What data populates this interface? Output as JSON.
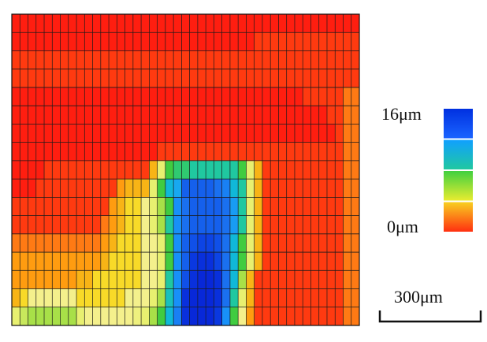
{
  "chart_data": {
    "type": "heatmap",
    "title": "",
    "xlabel": "",
    "ylabel": "",
    "colorbar": {
      "max_label": "16μm",
      "min_label": "0μm",
      "range": [
        0,
        16
      ],
      "unit": "μm",
      "bands": [
        {
          "from": 12,
          "to": 16,
          "colors": [
            "#0030e0",
            "#1a64ff"
          ]
        },
        {
          "from": 8,
          "to": 12,
          "colors": [
            "#10a0ff",
            "#20c8a0"
          ]
        },
        {
          "from": 4,
          "to": 8,
          "colors": [
            "#40d040",
            "#e8ec30"
          ]
        },
        {
          "from": 0,
          "to": 4,
          "colors": [
            "#f8d020",
            "#ff3010"
          ]
        }
      ]
    },
    "scale_bar": {
      "label": "300μm"
    },
    "grid": true,
    "rows": 17,
    "cols": 43,
    "height_map": [
      [
        0.0,
        0.0,
        0.0,
        0.0,
        0.0,
        0.0,
        0.0,
        0.0,
        0.0,
        0.0,
        0.0,
        0.0,
        0.0,
        0.0,
        0.0,
        0.0,
        0.0,
        0.0,
        0.0,
        0.0,
        0.0,
        0.0,
        0.0,
        0.0,
        0.0,
        0.0,
        0.0,
        0.0,
        0.0,
        0.0,
        0.0,
        0.0,
        0.0,
        0.0,
        0.0,
        0.0,
        0.0,
        0.0,
        0.0,
        0.0,
        0.0,
        0.0,
        0.0
      ],
      [
        0.0,
        0.0,
        0.0,
        0.0,
        0.0,
        0.0,
        0.0,
        0.0,
        0.0,
        0.0,
        0.0,
        0.0,
        0.0,
        0.0,
        0.0,
        0.0,
        0.0,
        0.0,
        0.0,
        0.0,
        0.0,
        0.0,
        0.0,
        0.0,
        0.0,
        0.0,
        0.0,
        0.0,
        0.0,
        0.0,
        1.0,
        1.0,
        1.0,
        1.0,
        1.0,
        1.0,
        1.0,
        1.0,
        1.0,
        1.0,
        1.0,
        1.0,
        1.0
      ],
      [
        1.0,
        1.0,
        1.0,
        1.0,
        1.0,
        1.0,
        1.0,
        1.0,
        1.0,
        1.0,
        1.0,
        1.0,
        1.0,
        1.0,
        1.0,
        1.0,
        1.0,
        1.0,
        1.0,
        1.0,
        1.0,
        1.0,
        1.0,
        1.0,
        1.0,
        1.0,
        1.0,
        1.0,
        1.0,
        1.0,
        1.0,
        1.0,
        1.0,
        1.0,
        1.0,
        1.0,
        1.0,
        1.0,
        1.0,
        1.0,
        1.0,
        1.0,
        1.0
      ],
      [
        1.0,
        1.0,
        1.0,
        1.0,
        1.0,
        1.0,
        1.0,
        1.0,
        1.0,
        1.0,
        1.0,
        1.0,
        1.0,
        1.0,
        1.0,
        1.0,
        1.0,
        1.0,
        1.0,
        1.0,
        1.0,
        1.0,
        1.0,
        1.0,
        1.0,
        1.0,
        1.0,
        1.0,
        1.0,
        1.0,
        1.0,
        1.0,
        1.0,
        1.0,
        1.0,
        1.0,
        1.0,
        1.0,
        1.0,
        1.0,
        1.0,
        1.0,
        1.0
      ],
      [
        0.0,
        0.0,
        0.0,
        0.0,
        0.0,
        0.0,
        0.0,
        0.0,
        0.0,
        0.0,
        0.0,
        0.0,
        0.0,
        0.0,
        0.0,
        0.0,
        0.0,
        0.0,
        0.0,
        0.0,
        0.0,
        0.0,
        0.0,
        0.0,
        0.0,
        0.0,
        0.0,
        0.0,
        0.0,
        0.0,
        0.0,
        0.0,
        0.0,
        0.0,
        0.0,
        0.0,
        1.0,
        1.0,
        1.0,
        1.0,
        1.0,
        1.5,
        1.5
      ],
      [
        0.0,
        0.0,
        0.0,
        0.0,
        0.0,
        0.0,
        0.0,
        0.0,
        0.0,
        0.0,
        0.0,
        0.0,
        0.0,
        0.0,
        0.0,
        0.0,
        0.0,
        0.0,
        0.0,
        0.0,
        0.0,
        0.0,
        0.0,
        0.0,
        0.0,
        0.0,
        0.0,
        0.0,
        0.0,
        0.0,
        0.0,
        0.0,
        0.0,
        0.0,
        0.0,
        0.0,
        0.0,
        0.0,
        0.0,
        1.0,
        1.0,
        1.5,
        1.5
      ],
      [
        0.0,
        0.0,
        0.0,
        0.0,
        0.0,
        0.0,
        0.0,
        0.0,
        0.0,
        0.0,
        0.0,
        0.0,
        0.0,
        0.0,
        0.0,
        0.0,
        0.0,
        0.0,
        0.0,
        0.0,
        0.0,
        0.0,
        0.0,
        0.0,
        0.0,
        0.0,
        0.0,
        0.0,
        0.0,
        0.0,
        0.0,
        0.0,
        0.0,
        0.0,
        0.0,
        0.0,
        0.0,
        0.0,
        0.0,
        0.0,
        1.0,
        1.5,
        1.5
      ],
      [
        0.0,
        0.0,
        0.0,
        0.0,
        0.0,
        0.0,
        0.0,
        0.0,
        0.0,
        0.0,
        0.0,
        0.0,
        0.0,
        0.0,
        0.0,
        0.0,
        0.0,
        0.0,
        1.0,
        1.0,
        1.0,
        1.0,
        1.0,
        1.0,
        1.0,
        1.0,
        1.0,
        1.0,
        1.0,
        1.0,
        1.0,
        1.0,
        1.0,
        1.0,
        1.0,
        1.0,
        1.0,
        1.0,
        1.0,
        1.0,
        1.0,
        1.5,
        1.5
      ],
      [
        0.0,
        0.0,
        0.0,
        0.0,
        1.0,
        1.0,
        1.0,
        1.0,
        1.0,
        1.0,
        1.0,
        1.0,
        1.0,
        1.0,
        1.0,
        1.0,
        1.0,
        3.0,
        5.0,
        7.0,
        7.5,
        7.5,
        8.0,
        8.0,
        8.0,
        8.0,
        8.0,
        8.0,
        7.0,
        5.0,
        3.0,
        1.0,
        1.0,
        1.0,
        1.0,
        1.0,
        1.0,
        1.0,
        1.0,
        1.0,
        1.0,
        1.5,
        1.5
      ],
      [
        0.0,
        0.0,
        0.0,
        1.0,
        1.0,
        1.0,
        1.0,
        1.0,
        1.0,
        1.0,
        1.0,
        1.0,
        1.0,
        2.0,
        3.0,
        3.0,
        3.0,
        5.0,
        7.0,
        9.0,
        10.0,
        12.5,
        12.5,
        12.5,
        12.5,
        12.0,
        11.5,
        9.0,
        8.0,
        5.0,
        3.0,
        1.0,
        1.0,
        1.0,
        1.0,
        1.0,
        1.0,
        1.0,
        1.0,
        1.0,
        1.0,
        1.5,
        1.5
      ],
      [
        1.0,
        1.0,
        1.0,
        1.0,
        1.0,
        1.0,
        1.0,
        1.0,
        1.0,
        1.0,
        1.0,
        1.0,
        2.0,
        3.0,
        3.5,
        3.5,
        4.0,
        5.0,
        6.0,
        7.0,
        11.0,
        12.0,
        12.5,
        12.5,
        12.5,
        12.5,
        12.0,
        10.5,
        8.0,
        5.0,
        3.0,
        1.0,
        1.0,
        1.0,
        1.0,
        1.0,
        1.0,
        1.0,
        1.0,
        1.0,
        1.0,
        1.5,
        1.5
      ],
      [
        1.0,
        1.0,
        1.0,
        1.0,
        1.0,
        1.0,
        1.0,
        1.0,
        1.0,
        1.0,
        1.0,
        1.5,
        2.0,
        3.0,
        3.5,
        3.5,
        4.0,
        5.0,
        6.0,
        8.0,
        11.0,
        12.0,
        12.5,
        12.5,
        12.5,
        12.5,
        12.0,
        10.5,
        8.0,
        5.0,
        3.0,
        1.0,
        1.0,
        1.0,
        1.0,
        1.0,
        1.0,
        1.0,
        1.0,
        1.0,
        1.0,
        1.5,
        1.5
      ],
      [
        1.5,
        1.5,
        1.5,
        1.5,
        1.5,
        1.5,
        1.5,
        1.5,
        1.5,
        1.5,
        1.5,
        2.0,
        3.0,
        3.5,
        3.5,
        3.5,
        4.0,
        4.0,
        5.0,
        7.0,
        11.0,
        12.5,
        13.0,
        13.5,
        13.5,
        13.0,
        12.0,
        9.0,
        7.0,
        5.0,
        3.0,
        1.0,
        1.0,
        1.0,
        1.0,
        1.0,
        1.0,
        1.0,
        1.0,
        1.0,
        1.0,
        1.5,
        1.5
      ],
      [
        2.0,
        2.0,
        2.0,
        2.0,
        2.0,
        2.0,
        2.0,
        2.0,
        2.0,
        2.0,
        2.0,
        3.0,
        3.5,
        3.5,
        3.5,
        3.5,
        4.0,
        4.0,
        5.0,
        7.0,
        11.0,
        12.5,
        14.0,
        14.5,
        14.5,
        13.5,
        12.0,
        9.0,
        7.0,
        5.0,
        3.0,
        1.0,
        1.0,
        1.0,
        1.0,
        1.0,
        1.0,
        1.0,
        1.0,
        1.0,
        1.0,
        1.5,
        1.5
      ],
      [
        2.0,
        2.0,
        2.0,
        2.0,
        2.0,
        2.0,
        2.0,
        2.0,
        3.0,
        3.0,
        3.5,
        3.5,
        3.5,
        3.5,
        3.5,
        3.5,
        4.0,
        4.0,
        5.0,
        8.0,
        11.0,
        13.0,
        14.5,
        15.0,
        15.0,
        14.5,
        12.0,
        9.0,
        6.0,
        3.0,
        1.0,
        1.0,
        1.0,
        1.0,
        1.0,
        1.0,
        1.0,
        1.0,
        1.0,
        1.0,
        1.0,
        1.5,
        1.5
      ],
      [
        3.0,
        3.5,
        4.0,
        4.0,
        4.0,
        4.0,
        4.0,
        4.0,
        3.5,
        3.5,
        3.5,
        3.5,
        3.5,
        3.5,
        4.0,
        4.0,
        4.0,
        5.0,
        6.0,
        8.5,
        11.0,
        14.5,
        15.0,
        15.0,
        15.0,
        14.5,
        12.0,
        8.0,
        5.0,
        3.0,
        1.0,
        1.0,
        1.0,
        1.0,
        1.0,
        1.0,
        1.0,
        1.0,
        1.0,
        1.0,
        1.0,
        1.5,
        1.5
      ],
      [
        5.0,
        5.5,
        6.0,
        6.0,
        6.0,
        6.0,
        6.0,
        6.0,
        5.0,
        4.0,
        4.0,
        4.0,
        4.0,
        4.0,
        4.0,
        4.5,
        5.0,
        6.0,
        7.0,
        9.0,
        11.5,
        14.5,
        15.0,
        15.0,
        15.0,
        14.0,
        11.0,
        7.0,
        4.0,
        2.0,
        1.0,
        1.0,
        1.0,
        1.0,
        1.0,
        1.0,
        1.0,
        1.0,
        1.0,
        1.0,
        1.0,
        1.5,
        1.5
      ]
    ]
  }
}
